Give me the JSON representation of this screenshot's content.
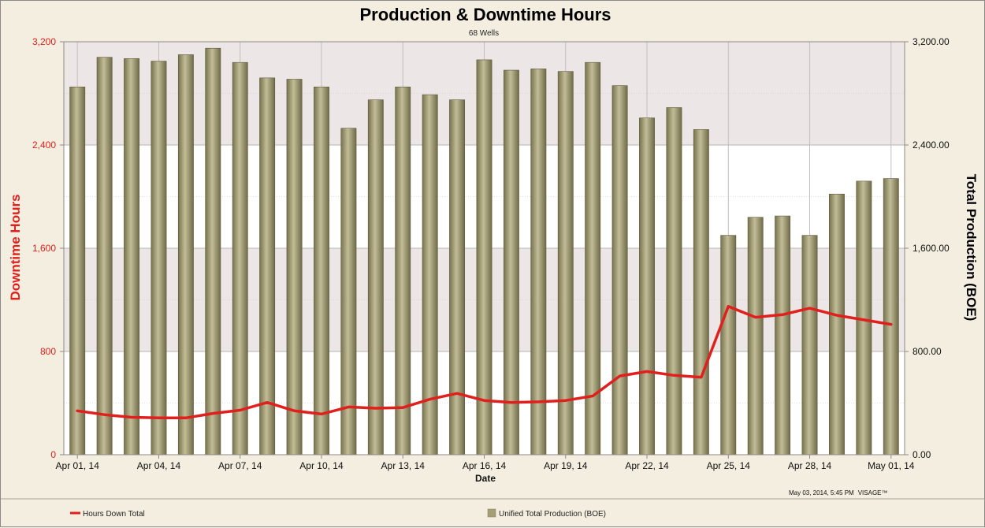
{
  "chart_data": {
    "type": "bar-line",
    "title": "Production & Downtime Hours",
    "subtitle": "68 Wells",
    "xlabel": "Date",
    "ylabel_left": "Downtime Hours",
    "ylabel_right": "Total Production (BOE)",
    "ylim_left": [
      0,
      3200
    ],
    "ylim_right": [
      0,
      3200
    ],
    "yticks_left": [
      "0",
      "800",
      "1,600",
      "2,400",
      "3,200"
    ],
    "yticks_right": [
      "0.00",
      "800.00",
      "1,600.00",
      "2,400.00",
      "3,200.00"
    ],
    "x_tick_labels": [
      "Apr 01, 14",
      "Apr 04, 14",
      "Apr 07, 14",
      "Apr 10, 14",
      "Apr 13, 14",
      "Apr 16, 14",
      "Apr 19, 14",
      "Apr 22, 14",
      "Apr 25, 14",
      "Apr 28, 14",
      "May 01, 14"
    ],
    "categories": [
      "Apr 01, 14",
      "Apr 02, 14",
      "Apr 03, 14",
      "Apr 04, 14",
      "Apr 05, 14",
      "Apr 06, 14",
      "Apr 07, 14",
      "Apr 08, 14",
      "Apr 09, 14",
      "Apr 10, 14",
      "Apr 11, 14",
      "Apr 12, 14",
      "Apr 13, 14",
      "Apr 14, 14",
      "Apr 15, 14",
      "Apr 16, 14",
      "Apr 17, 14",
      "Apr 18, 14",
      "Apr 19, 14",
      "Apr 20, 14",
      "Apr 21, 14",
      "Apr 22, 14",
      "Apr 23, 14",
      "Apr 24, 14",
      "Apr 25, 14",
      "Apr 26, 14",
      "Apr 27, 14",
      "Apr 28, 14",
      "Apr 29, 14",
      "Apr 30, 14",
      "May 01, 14"
    ],
    "series": [
      {
        "name": "Unified Total Production (BOE)",
        "type": "bar",
        "axis": "right",
        "color": "#a49f78",
        "values": [
          2850,
          3080,
          3070,
          3050,
          3100,
          3150,
          3040,
          2920,
          2910,
          2850,
          2530,
          2750,
          2850,
          2790,
          2750,
          3060,
          2980,
          2990,
          2970,
          3040,
          2860,
          2610,
          2690,
          2520,
          1700,
          1840,
          1850,
          1700,
          2020,
          2120,
          2140
        ]
      },
      {
        "name": "Hours Down Total",
        "type": "line",
        "axis": "left",
        "color": "#e0201c",
        "values": [
          340,
          310,
          290,
          285,
          285,
          320,
          345,
          405,
          340,
          315,
          370,
          360,
          365,
          430,
          475,
          420,
          405,
          410,
          420,
          455,
          610,
          645,
          615,
          600,
          1150,
          1065,
          1085,
          1135,
          1080,
          1045,
          1010
        ]
      }
    ],
    "legend_position": "bottom",
    "grid": true
  },
  "footer": {
    "timestamp": "May 03, 2014, 5:45 PM",
    "brand": "VISAGE™"
  },
  "colors": {
    "band_shaded": "#ece7e6",
    "band_white": "#ffffff",
    "page_bg": "#f3eedf",
    "left_axis": "#e0201c"
  }
}
